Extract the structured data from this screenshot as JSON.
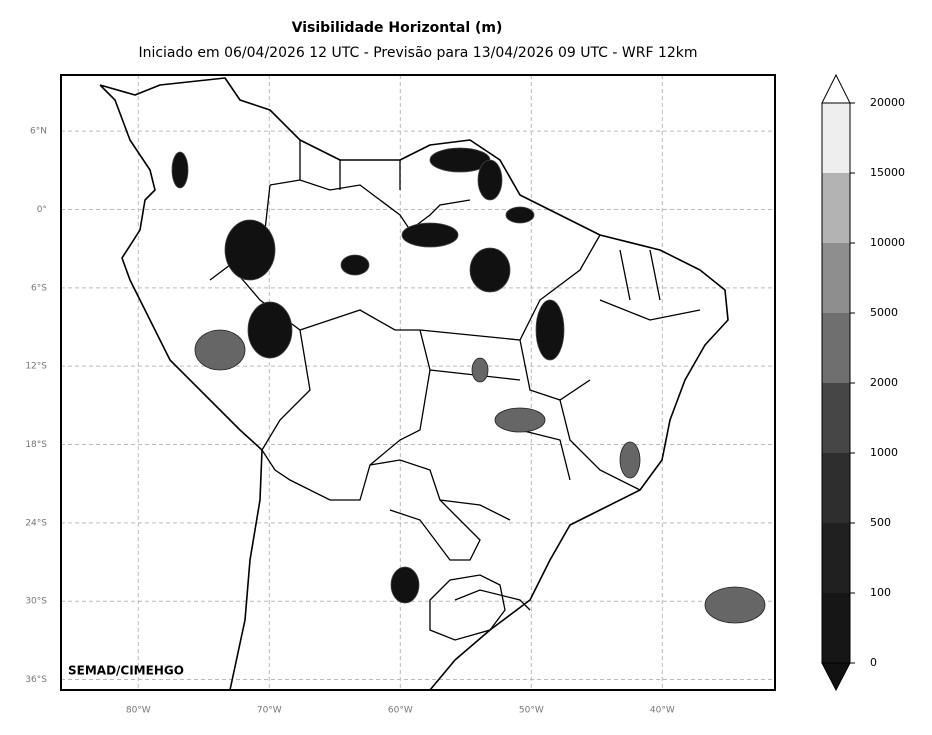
{
  "chart_data": {
    "type": "map",
    "title": "Visibilidade Horizontal (m)",
    "subtitle": "Iniciado em 06/04/2026 12 UTC - Previsão para 13/04/2026 09 UTC - WRF 12km",
    "credit": "SEMAD/CIMEHGO",
    "xlim": [
      -85.9,
      -31.4
    ],
    "ylim": [
      -36.8,
      10.3
    ],
    "xticks": [
      {
        "value": -80,
        "label": "80°W"
      },
      {
        "value": -70,
        "label": "70°W"
      },
      {
        "value": -60,
        "label": "60°W"
      },
      {
        "value": -50,
        "label": "50°W"
      },
      {
        "value": -40,
        "label": "40°W"
      }
    ],
    "yticks": [
      {
        "value": 6,
        "label": "6°N"
      },
      {
        "value": 0,
        "label": "0°"
      },
      {
        "value": -6,
        "label": "6°S"
      },
      {
        "value": -12,
        "label": "12°S"
      },
      {
        "value": -18,
        "label": "18°S"
      },
      {
        "value": -24,
        "label": "24°S"
      },
      {
        "value": -30,
        "label": "30°S"
      },
      {
        "value": -36,
        "label": "36°S"
      }
    ],
    "grid": true,
    "colorbar": {
      "ticks": [
        0,
        100,
        500,
        1000,
        2000,
        5000,
        10000,
        15000,
        20000
      ],
      "colors": [
        "#161616",
        "#202020",
        "#2e2e2e",
        "#464646",
        "#6f6f6f",
        "#8e8e8e",
        "#b3b3b3",
        "#eeeeee"
      ],
      "under_color": "#111111",
      "over_color": "#ffffff"
    }
  }
}
